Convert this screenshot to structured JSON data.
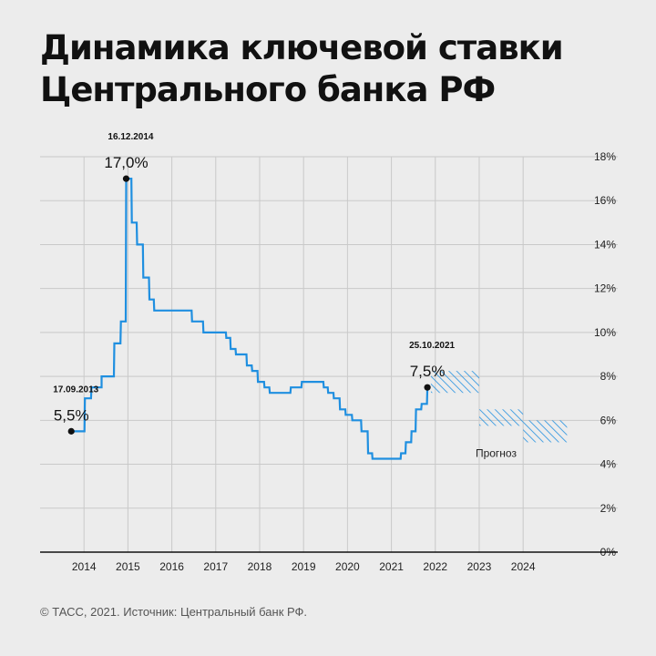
{
  "title_line1": "Динамика ключевой ставки",
  "title_line2": "Центрального банка РФ",
  "footer": "© ТАСС, 2021. Источник: Центральный банк РФ.",
  "colors": {
    "series": "#1f8fe0",
    "hatch": "#1f8fe0",
    "axis": "#111111",
    "grid": "#c9c9c9"
  },
  "chart_data": {
    "type": "line",
    "step": true,
    "title": "Динамика ключевой ставки Центрального банка РФ",
    "xlabel": "",
    "ylabel": "",
    "xlim": [
      2013.0,
      2025.2
    ],
    "ylim": [
      0,
      18
    ],
    "x_ticks": [
      2014,
      2015,
      2016,
      2017,
      2018,
      2019,
      2020,
      2021,
      2022,
      2023,
      2024
    ],
    "y_ticks": [
      0,
      2,
      4,
      6,
      8,
      10,
      12,
      14,
      16,
      18
    ],
    "y_tick_labels": [
      "0%",
      "2%",
      "4%",
      "6%",
      "8%",
      "10%",
      "12%",
      "14%",
      "16%",
      "18%"
    ],
    "grid": true,
    "series": [
      {
        "points": [
          [
            2013.71,
            5.5
          ],
          [
            2014.01,
            5.5
          ],
          [
            2014.02,
            7.0
          ],
          [
            2014.16,
            7.0
          ],
          [
            2014.17,
            7.5
          ],
          [
            2014.4,
            7.5
          ],
          [
            2014.4,
            8.0
          ],
          [
            2014.68,
            8.0
          ],
          [
            2014.69,
            9.5
          ],
          [
            2014.83,
            9.5
          ],
          [
            2014.84,
            10.5
          ],
          [
            2014.95,
            10.5
          ],
          [
            2014.96,
            17.0
          ],
          [
            2015.08,
            17.0
          ],
          [
            2015.09,
            15.0
          ],
          [
            2015.2,
            15.0
          ],
          [
            2015.21,
            14.0
          ],
          [
            2015.34,
            14.0
          ],
          [
            2015.35,
            12.5
          ],
          [
            2015.48,
            12.5
          ],
          [
            2015.49,
            11.5
          ],
          [
            2015.59,
            11.5
          ],
          [
            2015.6,
            11.0
          ],
          [
            2016.45,
            11.0
          ],
          [
            2016.46,
            10.5
          ],
          [
            2016.71,
            10.5
          ],
          [
            2016.72,
            10.0
          ],
          [
            2017.23,
            10.0
          ],
          [
            2017.24,
            9.75
          ],
          [
            2017.33,
            9.75
          ],
          [
            2017.34,
            9.25
          ],
          [
            2017.45,
            9.25
          ],
          [
            2017.46,
            9.0
          ],
          [
            2017.7,
            9.0
          ],
          [
            2017.71,
            8.5
          ],
          [
            2017.82,
            8.5
          ],
          [
            2017.83,
            8.25
          ],
          [
            2017.95,
            8.25
          ],
          [
            2017.96,
            7.75
          ],
          [
            2018.1,
            7.75
          ],
          [
            2018.11,
            7.5
          ],
          [
            2018.22,
            7.5
          ],
          [
            2018.23,
            7.25
          ],
          [
            2018.7,
            7.25
          ],
          [
            2018.71,
            7.5
          ],
          [
            2018.95,
            7.5
          ],
          [
            2018.96,
            7.75
          ],
          [
            2019.45,
            7.75
          ],
          [
            2019.46,
            7.5
          ],
          [
            2019.55,
            7.5
          ],
          [
            2019.56,
            7.25
          ],
          [
            2019.68,
            7.25
          ],
          [
            2019.69,
            7.0
          ],
          [
            2019.82,
            7.0
          ],
          [
            2019.83,
            6.5
          ],
          [
            2019.95,
            6.5
          ],
          [
            2019.96,
            6.25
          ],
          [
            2020.1,
            6.25
          ],
          [
            2020.11,
            6.0
          ],
          [
            2020.31,
            6.0
          ],
          [
            2020.32,
            5.5
          ],
          [
            2020.46,
            5.5
          ],
          [
            2020.47,
            4.5
          ],
          [
            2020.56,
            4.5
          ],
          [
            2020.57,
            4.25
          ],
          [
            2021.21,
            4.25
          ],
          [
            2021.22,
            4.5
          ],
          [
            2021.32,
            4.5
          ],
          [
            2021.33,
            5.0
          ],
          [
            2021.45,
            5.0
          ],
          [
            2021.46,
            5.5
          ],
          [
            2021.55,
            5.5
          ],
          [
            2021.56,
            6.5
          ],
          [
            2021.68,
            6.5
          ],
          [
            2021.69,
            6.75
          ],
          [
            2021.81,
            6.75
          ],
          [
            2021.82,
            7.5
          ]
        ]
      }
    ],
    "forecast": [
      {
        "x": [
          2021.9,
          2023.0
        ],
        "y": [
          7.25,
          8.25
        ]
      },
      {
        "x": [
          2023.0,
          2024.0
        ],
        "y": [
          5.75,
          6.5
        ]
      },
      {
        "x": [
          2024.0,
          2025.0
        ],
        "y": [
          5.0,
          6.0
        ]
      }
    ],
    "forecast_label": "Прогноз",
    "annotations": [
      {
        "date": "17.09.2013",
        "value": "5,5%",
        "x": 2013.71,
        "y": 5.5
      },
      {
        "date": "16.12.2014",
        "value": "17,0%",
        "x": 2014.96,
        "y": 17.0
      },
      {
        "date": "25.10.2021",
        "value": "7,5%",
        "x": 2021.82,
        "y": 7.5
      }
    ]
  }
}
